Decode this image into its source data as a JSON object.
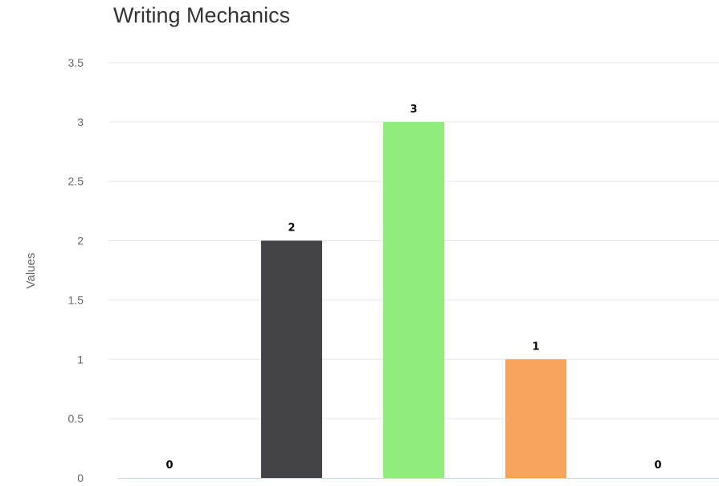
{
  "chart_data": {
    "type": "bar",
    "title": "Writing Mechanics",
    "xlabel": "",
    "ylabel": "Values",
    "ylim": [
      0,
      3.5
    ],
    "yticks": [
      0,
      0.5,
      1,
      1.5,
      2,
      2.5,
      3,
      3.5
    ],
    "ytick_labels": [
      "0",
      "0.5",
      "1",
      "1.5",
      "2",
      "2.5",
      "3",
      "3.5"
    ],
    "categories": [
      "",
      "",
      "",
      "",
      ""
    ],
    "values": [
      0,
      2,
      3,
      1,
      0
    ],
    "data_labels": [
      "0",
      "2",
      "3",
      "1",
      "0"
    ],
    "colors": [
      "#7cb5ec",
      "#434348",
      "#90ed7d",
      "#f7a35c",
      "#8085e9"
    ],
    "grid": true,
    "legend": "none"
  }
}
